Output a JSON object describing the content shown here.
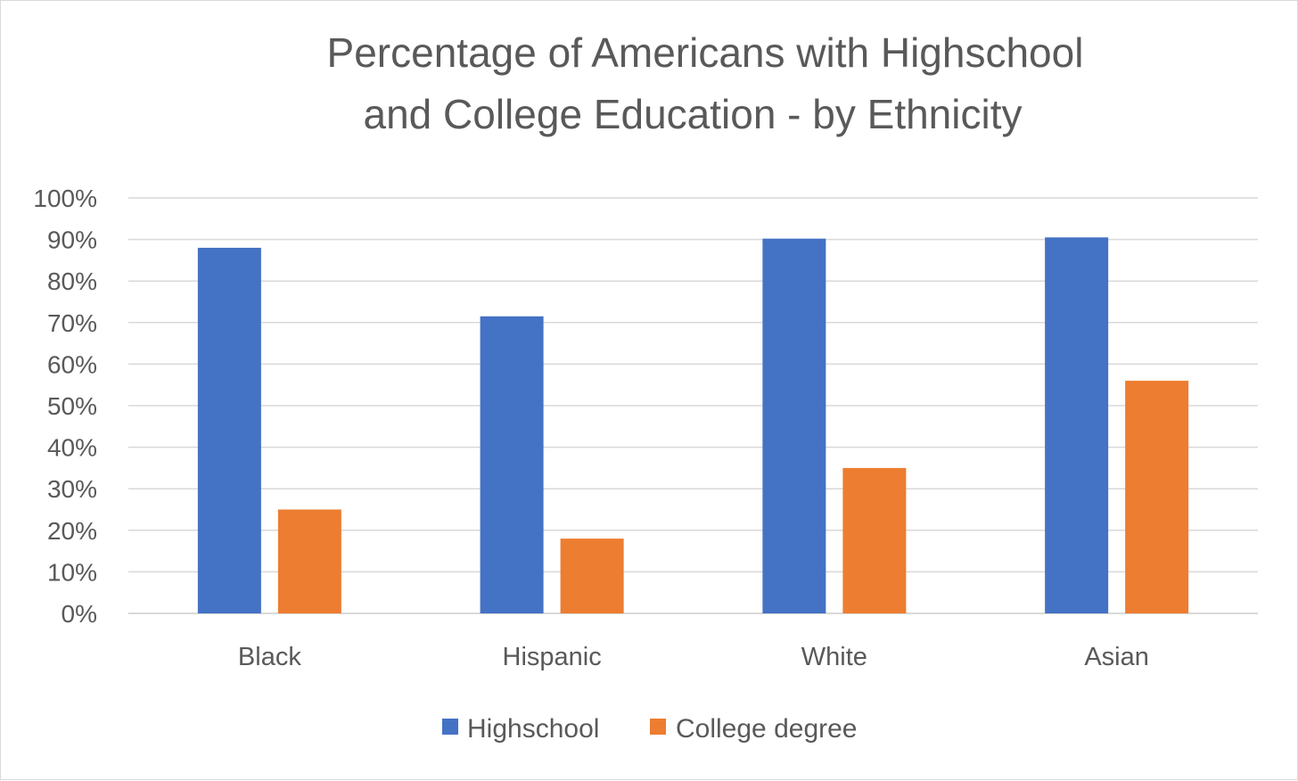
{
  "chart_data": {
    "type": "bar",
    "title": [
      "Percentage of Americans with Highschool",
      "and College Education - by Ethnicity"
    ],
    "categories": [
      "Black",
      "Hispanic",
      "White",
      "Asian"
    ],
    "series": [
      {
        "name": "Highschool",
        "color": "#4472C4",
        "values": [
          88,
          71.5,
          90.2,
          90.5
        ]
      },
      {
        "name": "College degree",
        "color": "#ED7D31",
        "values": [
          25,
          18,
          35,
          56
        ]
      }
    ],
    "ylim": [
      0,
      100
    ],
    "yticks": [
      "0%",
      "10%",
      "20%",
      "30%",
      "40%",
      "50%",
      "60%",
      "70%",
      "80%",
      "90%",
      "100%"
    ],
    "grid": true,
    "legend_position": "bottom"
  }
}
